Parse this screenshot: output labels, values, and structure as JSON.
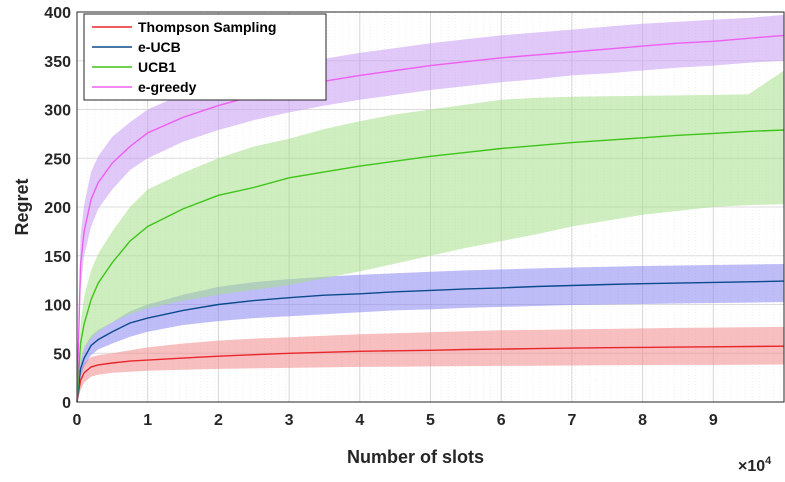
{
  "chart_data": {
    "type": "line",
    "title": "",
    "xlabel": "Number of slots",
    "ylabel": "Regret",
    "x_exponent_label": "×10",
    "x_exponent_power": "4",
    "xlim": [
      0,
      10
    ],
    "ylim": [
      0,
      400
    ],
    "xticks": [
      0,
      1,
      2,
      3,
      4,
      5,
      6,
      7,
      8,
      9
    ],
    "xtick_labels": [
      "0",
      "1",
      "2",
      "3",
      "4",
      "5",
      "6",
      "7",
      "8",
      "9"
    ],
    "yticks": [
      0,
      50,
      100,
      150,
      200,
      250,
      300,
      350,
      400
    ],
    "ytick_labels": [
      "0",
      "50",
      "100",
      "150",
      "200",
      "250",
      "300",
      "350",
      "400"
    ],
    "grid": true,
    "legend_position": "top-left",
    "x": [
      0,
      0.05,
      0.1,
      0.2,
      0.3,
      0.5,
      0.75,
      1,
      1.5,
      2,
      2.5,
      3,
      3.5,
      4,
      4.5,
      5,
      5.5,
      6,
      6.5,
      7,
      7.5,
      8,
      8.5,
      9,
      9.5,
      10
    ],
    "series": [
      {
        "name": "Thompson Sampling",
        "color": "#e8262b",
        "band_color": "#f08a8a",
        "mean": [
          0,
          22,
          30,
          36,
          38,
          40,
          42,
          43,
          45,
          47,
          48.5,
          50,
          51,
          52,
          52.5,
          53,
          53.8,
          54.3,
          54.8,
          55.3,
          55.7,
          56,
          56.3,
          56.6,
          56.9,
          57.2
        ],
        "lower": [
          0,
          12,
          20,
          26,
          28,
          30,
          31,
          32,
          33,
          34,
          34.5,
          35,
          35.5,
          36,
          36.2,
          36.5,
          36.8,
          37,
          37.2,
          37.4,
          37.6,
          37.8,
          38,
          38.1,
          38.3,
          38.5
        ],
        "upper": [
          0,
          32,
          40,
          46,
          48,
          50,
          53,
          56,
          60,
          63,
          65,
          66.5,
          68,
          69.5,
          70.5,
          71.5,
          72.5,
          73.5,
          74,
          74.5,
          75,
          75.5,
          76,
          76.3,
          76.7,
          77
        ]
      },
      {
        "name": "e-UCB",
        "color": "#0b4a8c",
        "band_color": "#8a86f2",
        "mean": [
          0,
          34,
          45,
          58,
          64,
          72,
          81,
          86,
          94,
          100,
          104,
          107,
          109.5,
          111,
          113,
          114.5,
          116,
          117,
          118.5,
          119.5,
          120.5,
          121.3,
          122,
          122.7,
          123.3,
          124
        ],
        "lower": [
          0,
          26,
          36,
          48,
          54,
          60,
          67,
          72,
          79,
          83,
          86,
          88,
          90,
          92,
          94,
          95,
          96.5,
          97.5,
          98.5,
          99.5,
          100,
          100.5,
          101,
          101.5,
          102,
          102.5
        ],
        "upper": [
          0,
          42,
          56,
          68,
          74,
          82,
          93,
          100,
          110,
          118,
          123,
          126,
          128.5,
          130.5,
          132,
          133.5,
          135,
          136,
          137,
          138,
          138.8,
          139.5,
          140,
          140.5,
          141,
          141.5
        ]
      },
      {
        "name": "UCB1",
        "color": "#3ec41a",
        "band_color": "#a6e08a",
        "mean": [
          0,
          60,
          80,
          105,
          122,
          143,
          165,
          180,
          198,
          212,
          220,
          230,
          236,
          242,
          247,
          252,
          256,
          260,
          263,
          266,
          268.5,
          271,
          273.5,
          275.5,
          277.5,
          279
        ],
        "lower": [
          0,
          40,
          55,
          65,
          72,
          82,
          90,
          96,
          104,
          110,
          115,
          120,
          127,
          134,
          142,
          150,
          158,
          165,
          172,
          180,
          186,
          192,
          196,
          200,
          202,
          203
        ],
        "upper": [
          0,
          80,
          108,
          135,
          152,
          175,
          200,
          218,
          235,
          250,
          262,
          270,
          280,
          288,
          295,
          300,
          305,
          310,
          312,
          313,
          313.5,
          314,
          314.5,
          315,
          315.5,
          340
        ]
      },
      {
        "name": "e-greedy",
        "color": "#ef5ef2",
        "band_color": "#c79af2",
        "mean": [
          0,
          140,
          175,
          208,
          225,
          245,
          262,
          276,
          292,
          304,
          314,
          322,
          329,
          335,
          340,
          345,
          349,
          353,
          356,
          359,
          362,
          365,
          368,
          370,
          373,
          376
        ],
        "lower": [
          0,
          115,
          150,
          180,
          198,
          218,
          238,
          250,
          267,
          279,
          289,
          297,
          304,
          310,
          315,
          320,
          324,
          328,
          331,
          335,
          337,
          340,
          343,
          345,
          348,
          350
        ],
        "upper": [
          0,
          170,
          202,
          236,
          252,
          272,
          287,
          300,
          316,
          328,
          338,
          346,
          352,
          358,
          363,
          368,
          372,
          376,
          379,
          382,
          385,
          388,
          390,
          392,
          394,
          397
        ]
      }
    ]
  }
}
